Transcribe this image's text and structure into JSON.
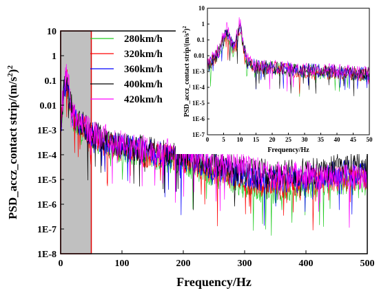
{
  "chart_data": [
    {
      "type": "line",
      "subtype": "power-spectral-density",
      "title": "",
      "xlabel": "Frequency/Hz",
      "ylabel_base": "PSD_accz_contact strip/(m/s",
      "ylabel_sup": "2",
      "ylabel_mid": ")",
      "ylabel_sup2": "2",
      "yscale": "log",
      "xlim": [
        0,
        500
      ],
      "ylim": [
        1e-08,
        10
      ],
      "x_ticks": [
        0,
        100,
        200,
        300,
        400,
        500
      ],
      "x_tick_labels": [
        "0",
        "100",
        "200",
        "300",
        "400",
        "500"
      ],
      "y_ticks": [
        1e-08,
        1e-07,
        1e-06,
        1e-05,
        0.0001,
        0.001,
        0.01,
        0.1,
        1,
        10
      ],
      "y_tick_labels": [
        "1E-8",
        "1E-7",
        "1E-6",
        "1E-5",
        "1E-4",
        "1E-3",
        "0.01",
        "0.1",
        "1",
        "10"
      ],
      "highlight_region": {
        "x": [
          0,
          50
        ],
        "fill": "#c0c0c0",
        "stroke": "#e00000"
      },
      "grid": false,
      "legend_position": "top-center",
      "series": [
        {
          "name": "280km/h",
          "color": "#22cc22",
          "shape": [
            [
              0,
              0.001
            ],
            [
              5,
              0.02
            ],
            [
              10,
              0.08
            ],
            [
              20,
              0.003
            ],
            [
              50,
              0.0005
            ],
            [
              100,
              0.00015
            ],
            [
              200,
              5e-05
            ],
            [
              300,
              6e-06
            ],
            [
              350,
              3e-06
            ],
            [
              400,
              6e-06
            ],
            [
              450,
              8e-06
            ],
            [
              500,
              8e-06
            ]
          ]
        },
        {
          "name": "320km/h",
          "color": "#ff0000",
          "shape": [
            [
              0,
              0.001
            ],
            [
              5,
              0.03
            ],
            [
              10,
              0.1
            ],
            [
              20,
              0.003
            ],
            [
              50,
              0.0005
            ],
            [
              100,
              0.00015
            ],
            [
              200,
              6e-05
            ],
            [
              300,
              8e-06
            ],
            [
              350,
              5e-06
            ],
            [
              400,
              8e-06
            ],
            [
              450,
              1.2e-05
            ],
            [
              500,
              1e-05
            ]
          ]
        },
        {
          "name": "360km/h",
          "color": "#0000ff",
          "shape": [
            [
              0,
              0.001
            ],
            [
              5,
              0.03
            ],
            [
              10,
              0.1
            ],
            [
              20,
              0.003
            ],
            [
              50,
              0.0006
            ],
            [
              100,
              0.0002
            ],
            [
              200,
              7e-05
            ],
            [
              300,
              1.5e-05
            ],
            [
              350,
              1e-05
            ],
            [
              400,
              1.2e-05
            ],
            [
              450,
              1.8e-05
            ],
            [
              500,
              2e-05
            ]
          ]
        },
        {
          "name": "400km/h",
          "color": "#000000",
          "shape": [
            [
              0,
              0.001
            ],
            [
              5,
              0.03
            ],
            [
              10,
              0.1
            ],
            [
              20,
              0.004
            ],
            [
              50,
              0.0007
            ],
            [
              100,
              0.00025
            ],
            [
              200,
              9e-05
            ],
            [
              300,
              2.5e-05
            ],
            [
              350,
              1.8e-05
            ],
            [
              400,
              2e-05
            ],
            [
              450,
              3e-05
            ],
            [
              500,
              3.5e-05
            ]
          ]
        },
        {
          "name": "420km/h",
          "color": "#ff00ff",
          "shape": [
            [
              0,
              0.002
            ],
            [
              5,
              0.04
            ],
            [
              10,
              0.2
            ],
            [
              20,
              0.004
            ],
            [
              50,
              0.0008
            ],
            [
              100,
              0.0003
            ],
            [
              200,
              0.0001
            ],
            [
              300,
              3e-05
            ],
            [
              350,
              1.5e-05
            ],
            [
              400,
              1.5e-05
            ],
            [
              450,
              1.2e-05
            ],
            [
              500,
              1.2e-05
            ]
          ]
        }
      ]
    },
    {
      "type": "line",
      "subtype": "inset-zoom",
      "title": "",
      "xlabel": "Frequency/Hz",
      "ylabel_base": "PSD_accz_contact strip/(m/s",
      "ylabel_sup": "2",
      "ylabel_mid": ")",
      "ylabel_sup2": "2",
      "yscale": "log",
      "xlim": [
        0,
        50
      ],
      "ylim": [
        1e-07,
        10
      ],
      "x_ticks": [
        0,
        5,
        10,
        15,
        20,
        25,
        30,
        35,
        40,
        45,
        50
      ],
      "x_tick_labels": [
        "0",
        "5",
        "10",
        "15",
        "20",
        "25",
        "30",
        "35",
        "40",
        "45",
        "50"
      ],
      "y_ticks": [
        1e-07,
        1e-06,
        1e-05,
        0.0001,
        0.001,
        0.01,
        0.1,
        1,
        10
      ],
      "y_tick_labels": [
        "1E-7",
        "1E-6",
        "1E-5",
        "1E-4",
        "1E-3",
        "0.01",
        "0.1",
        "1",
        "10"
      ],
      "grid": false,
      "series": [
        {
          "name": "280km/h",
          "color": "#22cc22",
          "shape": [
            [
              0,
              0.002
            ],
            [
              3,
              0.01
            ],
            [
              6,
              0.2
            ],
            [
              8,
              0.02
            ],
            [
              10,
              0.5
            ],
            [
              12,
              0.005
            ],
            [
              15,
              0.002
            ],
            [
              30,
              0.001
            ],
            [
              50,
              0.0005
            ]
          ]
        },
        {
          "name": "320km/h",
          "color": "#ff0000",
          "shape": [
            [
              0,
              0.002
            ],
            [
              3,
              0.01
            ],
            [
              6,
              0.2
            ],
            [
              8,
              0.02
            ],
            [
              10,
              0.6
            ],
            [
              12,
              0.005
            ],
            [
              15,
              0.002
            ],
            [
              30,
              0.001
            ],
            [
              50,
              0.0006
            ]
          ]
        },
        {
          "name": "360km/h",
          "color": "#0000ff",
          "shape": [
            [
              0,
              0.002
            ],
            [
              3,
              0.01
            ],
            [
              6,
              0.3
            ],
            [
              8,
              0.03
            ],
            [
              10,
              0.8
            ],
            [
              12,
              0.005
            ],
            [
              15,
              0.002
            ],
            [
              30,
              0.0012
            ],
            [
              50,
              0.0007
            ]
          ]
        },
        {
          "name": "400km/h",
          "color": "#000000",
          "shape": [
            [
              0,
              0.002
            ],
            [
              3,
              0.01
            ],
            [
              6,
              0.3
            ],
            [
              8,
              0.03
            ],
            [
              10,
              0.8
            ],
            [
              12,
              0.006
            ],
            [
              15,
              0.002
            ],
            [
              30,
              0.0012
            ],
            [
              50,
              0.0007
            ]
          ]
        },
        {
          "name": "420km/h",
          "color": "#ff00ff",
          "shape": [
            [
              0,
              0.003
            ],
            [
              3,
              0.02
            ],
            [
              6,
              0.5
            ],
            [
              8,
              0.04
            ],
            [
              10,
              1.5
            ],
            [
              12,
              0.006
            ],
            [
              15,
              0.0025
            ],
            [
              30,
              0.0015
            ],
            [
              50,
              0.0008
            ]
          ]
        }
      ]
    }
  ]
}
